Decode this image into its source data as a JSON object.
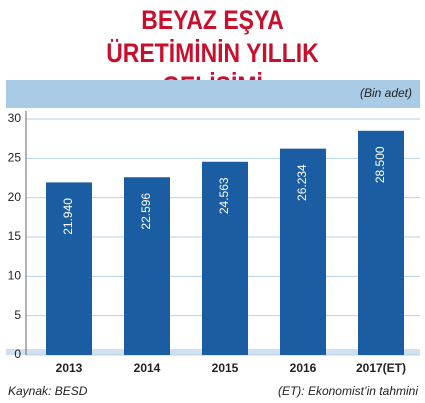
{
  "chart_data": {
    "type": "bar",
    "title": "BEYAZ EŞYA ÜRETİMİNİN YILLIK GELİŞİMİ",
    "unit_label": "(Bin adet)",
    "categories": [
      "2013",
      "2014",
      "2015",
      "2016",
      "2017(ET)"
    ],
    "values": [
      21.94,
      22.596,
      24.563,
      26.234,
      28.5
    ],
    "value_labels": [
      "21.940",
      "22.596",
      "24.563",
      "26.234",
      "28.500"
    ],
    "color": "#1b5da2",
    "ylim": [
      0,
      30
    ],
    "yticks": [
      0,
      5,
      10,
      15,
      20,
      25,
      30
    ],
    "grid": true,
    "source": "Kaynak: BESD",
    "note": "(ET): Ekonomist’in tahmini"
  }
}
